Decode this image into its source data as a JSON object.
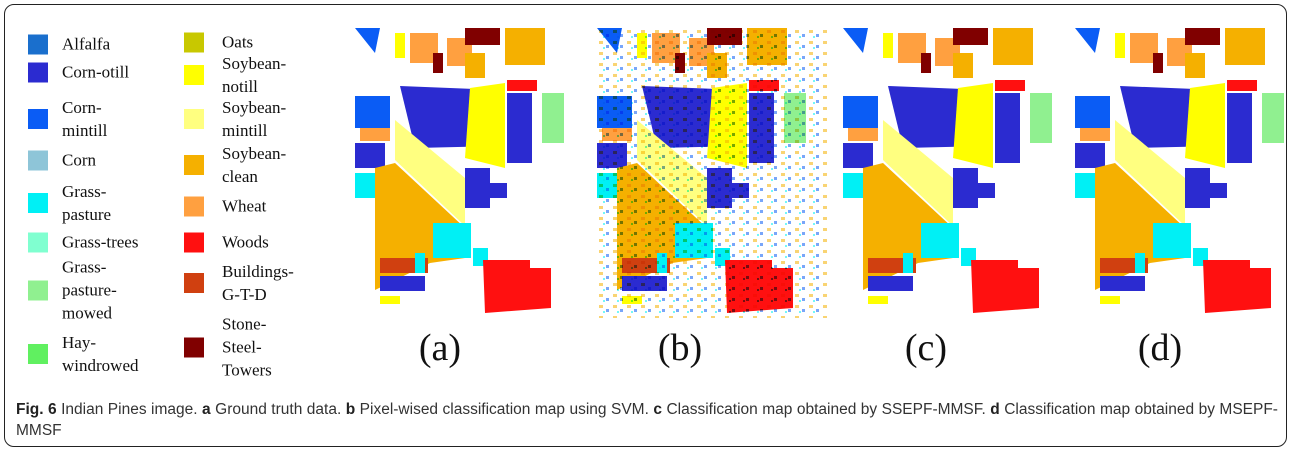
{
  "legend": {
    "items": [
      {
        "lines": [
          "Alfalfa"
        ],
        "color": "#1a6fcd"
      },
      {
        "lines": [
          "Corn-otill"
        ],
        "color": "#2b2bd0"
      },
      {
        "lines": [
          "Corn-",
          "mintill"
        ],
        "color": "#0a5cf5"
      },
      {
        "lines": [
          "Corn"
        ],
        "color": "#8ec5d8"
      },
      {
        "lines": [
          "Grass-",
          "pasture"
        ],
        "color": "#00f0f5"
      },
      {
        "lines": [
          "Grass-trees"
        ],
        "color": "#80ffd0"
      },
      {
        "lines": [
          "Grass-",
          "pasture-",
          "mowed"
        ],
        "color": "#90f090"
      },
      {
        "lines": [
          "Hay-",
          "windrowed"
        ],
        "color": "#60f060"
      },
      {
        "lines": [
          "Oats"
        ],
        "color": "#c8c800"
      },
      {
        "lines": [
          "Soybean-",
          "notill"
        ],
        "color": "#ffff00"
      },
      {
        "lines": [
          "Soybean-",
          "mintill"
        ],
        "color": "#ffff80"
      },
      {
        "lines": [
          "Soybean-",
          "clean"
        ],
        "color": "#f5b000"
      },
      {
        "lines": [
          "Wheat"
        ],
        "color": "#ffa040"
      },
      {
        "lines": [
          "Woods"
        ],
        "color": "#ff1010"
      },
      {
        "lines": [
          "Buildings-",
          "G-T-D"
        ],
        "color": "#d04010"
      },
      {
        "lines": [
          "Stone-",
          "Steel-",
          "Towers"
        ],
        "color": "#800000"
      }
    ]
  },
  "panels": [
    {
      "label": "(a)"
    },
    {
      "label": "(b)"
    },
    {
      "label": "(c)"
    },
    {
      "label": "(d)"
    }
  ],
  "caption": {
    "figure": "Fig. 6",
    "title": "Indian Pines image.",
    "parts": [
      {
        "key": "a",
        "text": "Ground truth data."
      },
      {
        "key": "b",
        "text": "Pixel-wised classification map using SVM."
      },
      {
        "key": "c",
        "text": "Classification map obtained by SSEPF-MMSF."
      },
      {
        "key": "d",
        "text": "Classification map obtained by MSEPF-MMSF"
      }
    ]
  }
}
